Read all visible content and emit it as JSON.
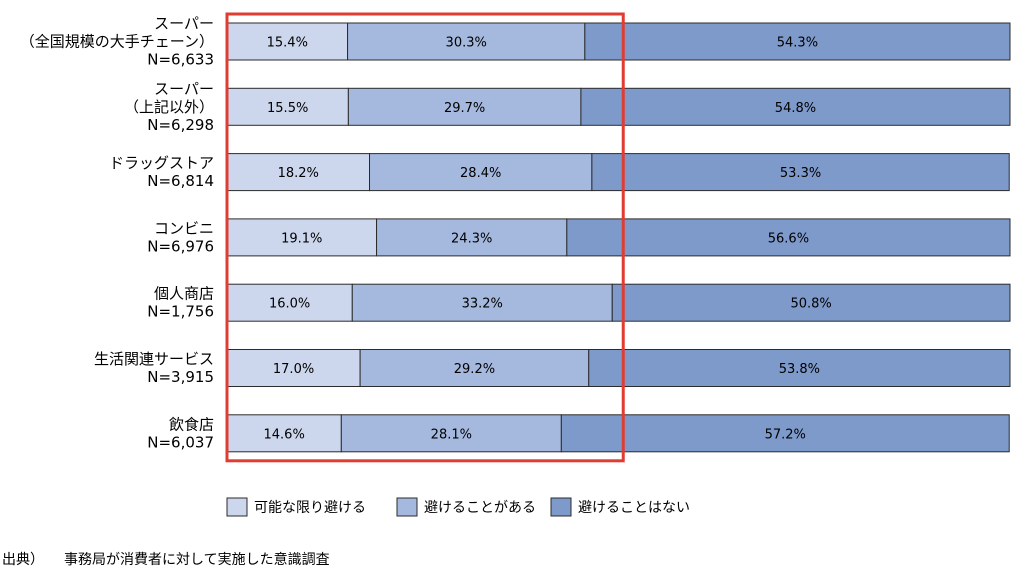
{
  "chart_data": {
    "type": "bar",
    "orientation": "horizontal",
    "stacked": "percent",
    "categories": [
      {
        "lines": [
          "スーパー",
          "（全国規模の大手チェーン）",
          "N=6,633"
        ]
      },
      {
        "lines": [
          "スーパー",
          "（上記以外）",
          "N=6,298"
        ]
      },
      {
        "lines": [
          "ドラッグストア",
          "N=6,814"
        ]
      },
      {
        "lines": [
          "コンビニ",
          "N=6,976"
        ]
      },
      {
        "lines": [
          "個人商店",
          "N=1,756"
        ]
      },
      {
        "lines": [
          "生活関連サービス",
          "N=3,915"
        ]
      },
      {
        "lines": [
          "飲食店",
          "N=6,037"
        ]
      }
    ],
    "series": [
      {
        "name": "可能な限り避ける",
        "color": "#ccd6ec",
        "values": [
          15.4,
          15.5,
          18.2,
          19.1,
          16.0,
          17.0,
          14.6
        ],
        "labels": [
          "15.4%",
          "15.5%",
          "18.2%",
          "19.1%",
          "16.0%",
          "17.0%",
          "14.6%"
        ]
      },
      {
        "name": "避けることがある",
        "color": "#a5b8de",
        "values": [
          30.3,
          29.7,
          28.4,
          24.3,
          33.2,
          29.2,
          28.1
        ],
        "labels": [
          "30.3%",
          "29.7%",
          "28.4%",
          "24.3%",
          "33.2%",
          "29.2%",
          "28.1%"
        ]
      },
      {
        "name": "避けることはない",
        "color": "#7e9acb",
        "values": [
          54.3,
          54.8,
          53.3,
          56.6,
          50.8,
          53.8,
          57.2
        ],
        "labels": [
          "54.3%",
          "54.8%",
          "53.3%",
          "56.6%",
          "50.8%",
          "53.8%",
          "57.2%"
        ]
      }
    ],
    "xlim": [
      0,
      100
    ],
    "legend_position": "bottom",
    "highlight": {
      "color": "#e03c31",
      "covers_series": [
        "可能な限り避ける",
        "避けることがある"
      ]
    }
  },
  "source": {
    "prefix": "出典）",
    "text": "事務局が消費者に対して実施した意識調査"
  }
}
